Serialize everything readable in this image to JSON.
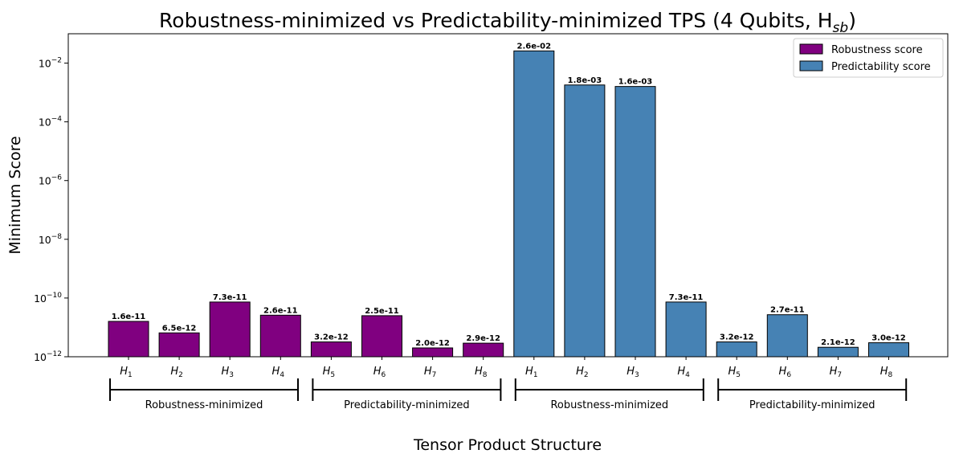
{
  "chart_data": {
    "type": "bar",
    "title": "Robustness-minimized vs Predictability-minimized TPS (4 Qubits, H",
    "title_sub": "sb",
    "title_close": ")",
    "xlabel": "Tensor Product Structure",
    "ylabel": "Minimum Score",
    "yscale": "log",
    "ylim": [
      1e-12,
      0.1
    ],
    "y_ticks": [
      {
        "value": 1e-12,
        "base": "10",
        "exp": "−12"
      },
      {
        "value": 1e-10,
        "base": "10",
        "exp": "−10"
      },
      {
        "value": 1e-08,
        "base": "10",
        "exp": "−8"
      },
      {
        "value": 1e-06,
        "base": "10",
        "exp": "−6"
      },
      {
        "value": 0.0001,
        "base": "10",
        "exp": "−4"
      },
      {
        "value": 0.01,
        "base": "10",
        "exp": "−2"
      }
    ],
    "legend_position": "top-right",
    "series": [
      {
        "name": "Robustness score",
        "color": "#800080",
        "categories": [
          {
            "base": "H",
            "sub": "1"
          },
          {
            "base": "H",
            "sub": "2"
          },
          {
            "base": "H",
            "sub": "3"
          },
          {
            "base": "H",
            "sub": "4"
          },
          {
            "base": "H",
            "sub": "5"
          },
          {
            "base": "H",
            "sub": "6"
          },
          {
            "base": "H",
            "sub": "7"
          },
          {
            "base": "H",
            "sub": "8"
          }
        ],
        "values": [
          1.6e-11,
          6.5e-12,
          7.3e-11,
          2.6e-11,
          3.2e-12,
          2.5e-11,
          2e-12,
          2.9e-12
        ],
        "labels": [
          "1.6e-11",
          "6.5e-12",
          "7.3e-11",
          "2.6e-11",
          "3.2e-12",
          "2.5e-11",
          "2.0e-12",
          "2.9e-12"
        ]
      },
      {
        "name": "Predictability score",
        "color": "#4682B4",
        "categories": [
          {
            "base": "H",
            "sub": "1"
          },
          {
            "base": "H",
            "sub": "2"
          },
          {
            "base": "H",
            "sub": "3"
          },
          {
            "base": "H",
            "sub": "4"
          },
          {
            "base": "H",
            "sub": "5"
          },
          {
            "base": "H",
            "sub": "6"
          },
          {
            "base": "H",
            "sub": "7"
          },
          {
            "base": "H",
            "sub": "8"
          }
        ],
        "values": [
          0.026,
          0.0018,
          0.0016,
          7.3e-11,
          3.2e-12,
          2.7e-11,
          2.1e-12,
          3e-12
        ],
        "labels": [
          "2.6e-02",
          "1.8e-03",
          "1.6e-03",
          "7.3e-11",
          "3.2e-12",
          "2.7e-11",
          "2.1e-12",
          "3.0e-12"
        ]
      }
    ],
    "groups": [
      {
        "label": "Robustness-minimized"
      },
      {
        "label": "Predictability-minimized"
      },
      {
        "label": "Robustness-minimized"
      },
      {
        "label": "Predictability-minimized"
      }
    ]
  }
}
